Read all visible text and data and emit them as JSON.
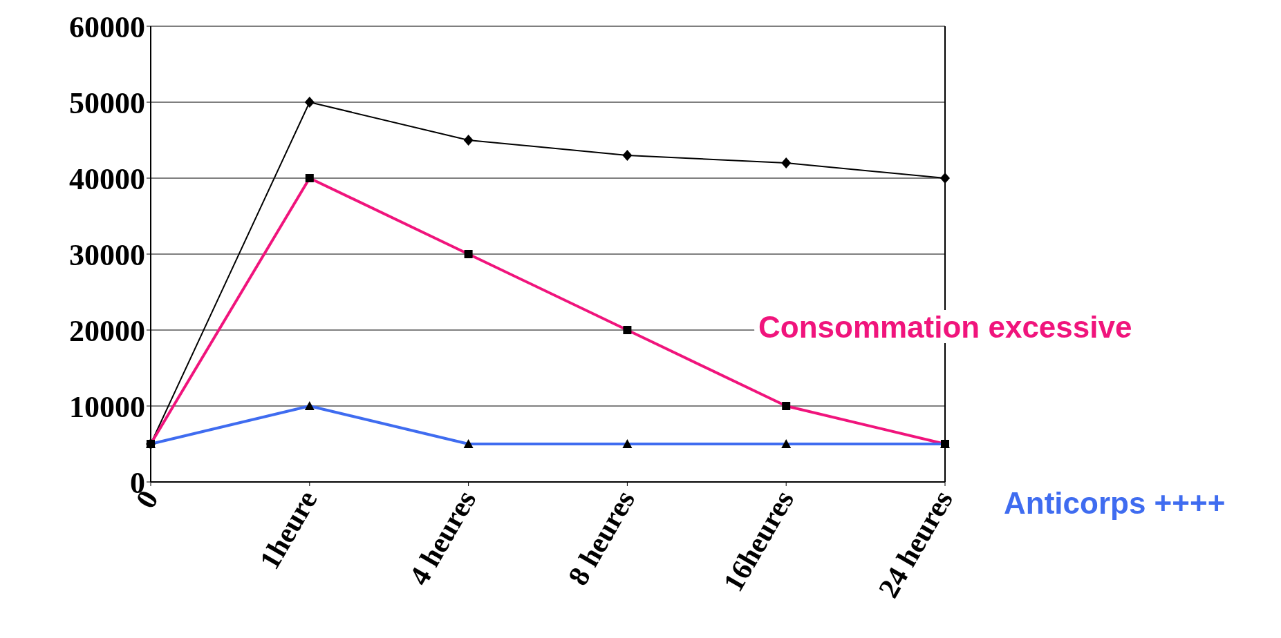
{
  "chart_data": {
    "type": "line",
    "categories": [
      "0",
      "1heure",
      "4 heures",
      "8 heures",
      "16heures",
      "24 heures"
    ],
    "series": [
      {
        "color": "#000000",
        "marker": "diamond",
        "values": [
          5000,
          50000,
          45000,
          43000,
          42000,
          40000
        ]
      },
      {
        "name": "Consommation excessive",
        "color": "#f0147c",
        "marker": "square",
        "values": [
          5000,
          40000,
          30000,
          20000,
          10000,
          5000
        ]
      },
      {
        "name": "Anticorps ++++",
        "color": "#3f6cf0",
        "marker": "triangle",
        "values": [
          5000,
          10000,
          5000,
          5000,
          5000,
          5000
        ]
      }
    ],
    "ylim": [
      0,
      60000
    ],
    "yticks": [
      0,
      10000,
      20000,
      30000,
      40000,
      50000,
      60000
    ],
    "grid": "y",
    "legend": false,
    "line_style": "solid"
  }
}
